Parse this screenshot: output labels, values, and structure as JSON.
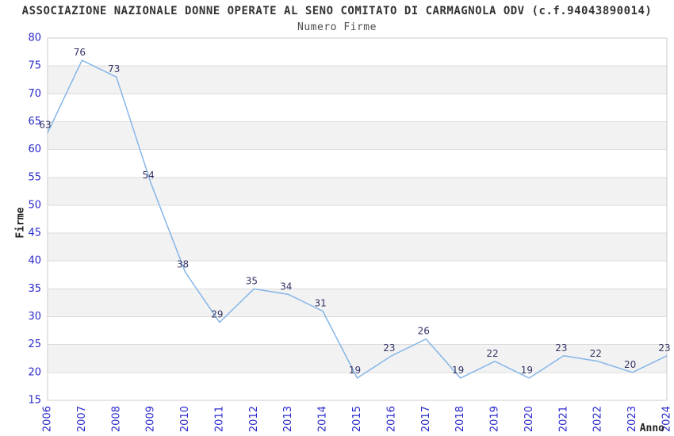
{
  "header": {
    "title": "ASSOCIAZIONE NAZIONALE DONNE OPERATE AL SENO COMITATO DI CARMAGNOLA ODV (c.f.94043890014)",
    "subtitle": "Numero Firme"
  },
  "chart_data": {
    "type": "line",
    "title": "ASSOCIAZIONE NAZIONALE DONNE OPERATE AL SENO COMITATO DI CARMAGNOLA ODV (c.f.94043890014)",
    "subtitle": "Numero Firme",
    "xlabel": "Anno",
    "ylabel": "Firme",
    "x": [
      2006,
      2007,
      2008,
      2009,
      2010,
      2011,
      2012,
      2013,
      2014,
      2015,
      2016,
      2017,
      2018,
      2019,
      2020,
      2021,
      2022,
      2023,
      2024
    ],
    "series": [
      {
        "name": "Numero Firme",
        "values": [
          63,
          76,
          73,
          54,
          38,
          29,
          35,
          34,
          31,
          19,
          23,
          26,
          19,
          22,
          19,
          23,
          22,
          20,
          23
        ]
      }
    ],
    "ylim": [
      15,
      80
    ],
    "ytick_step": 5,
    "yticks": [
      15,
      20,
      25,
      30,
      35,
      40,
      45,
      50,
      55,
      60,
      65,
      70,
      75,
      80
    ],
    "grid": "horizontal-bands",
    "legend_position": "none",
    "point_labels_visible": true,
    "colors": {
      "line": "#85b6e8",
      "tick_labels": "#2828cc",
      "point_labels": "#333366",
      "band_gray": "#f2f2f2",
      "band_white": "#ffffff",
      "gridline": "#dcdcdc",
      "plot_border": "#cccccc",
      "title": "#333333",
      "subtitle": "#4d4d4d",
      "axis_title": "#222222"
    }
  }
}
